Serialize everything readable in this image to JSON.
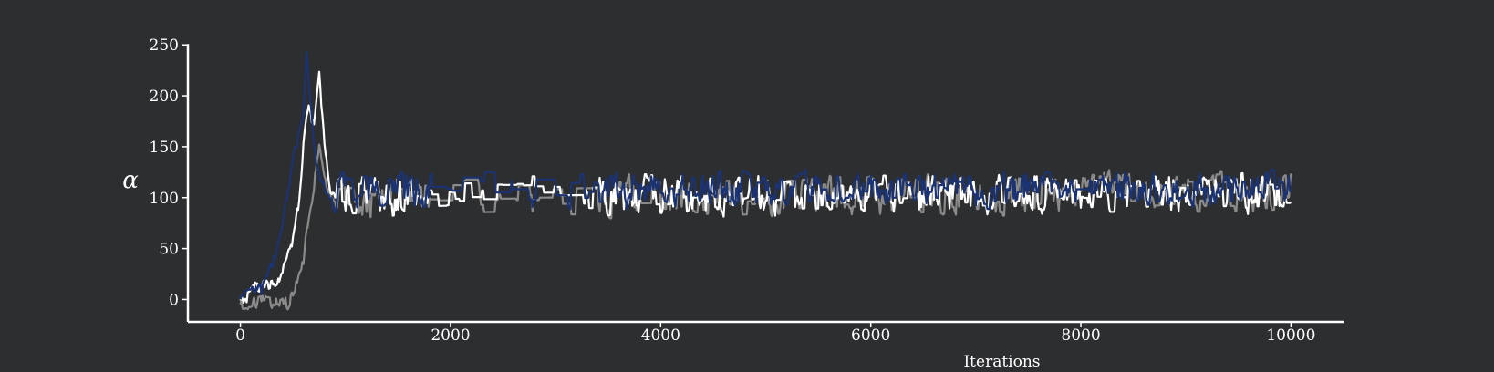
{
  "chart_data": {
    "type": "line",
    "title": "",
    "xlabel": "Iterations",
    "ylabel": "α",
    "xlim": [
      -500,
      10500
    ],
    "ylim": [
      -22,
      252
    ],
    "xticks": [
      0,
      2000,
      4000,
      6000,
      8000,
      10000
    ],
    "yticks": [
      0,
      50,
      100,
      150,
      200,
      250
    ],
    "xtick_labels": [
      "0",
      "2000",
      "4000",
      "6000",
      "8000",
      "10000"
    ],
    "ytick_labels": [
      "0",
      "50",
      "100",
      "150",
      "200",
      "250"
    ],
    "grid": false,
    "legend": "none",
    "series": [
      {
        "color": "#8a8a8a",
        "anchors": [
          [
            0,
            -5
          ],
          [
            100,
            -7
          ],
          [
            200,
            -2
          ],
          [
            300,
            -3
          ],
          [
            400,
            0
          ],
          [
            450,
            -5
          ],
          [
            500,
            5
          ],
          [
            550,
            18
          ],
          [
            600,
            40
          ],
          [
            650,
            80
          ],
          [
            700,
            110
          ],
          [
            750,
            155
          ],
          [
            800,
            120
          ],
          [
            850,
            105
          ],
          [
            900,
            100
          ],
          [
            1000,
            100
          ],
          [
            10000,
            105
          ]
        ],
        "mean": 105,
        "noise": 13
      },
      {
        "color": "#ffffff",
        "anchors": [
          [
            0,
            0
          ],
          [
            100,
            5
          ],
          [
            150,
            12
          ],
          [
            200,
            10
          ],
          [
            300,
            15
          ],
          [
            400,
            25
          ],
          [
            500,
            60
          ],
          [
            550,
            90
          ],
          [
            600,
            150
          ],
          [
            650,
            190
          ],
          [
            700,
            170
          ],
          [
            750,
            220
          ],
          [
            800,
            150
          ],
          [
            850,
            105
          ],
          [
            900,
            100
          ],
          [
            1000,
            100
          ],
          [
            10000,
            105
          ]
        ],
        "mean": 105,
        "noise": 13
      },
      {
        "color": "#1b3372",
        "anchors": [
          [
            0,
            0
          ],
          [
            100,
            5
          ],
          [
            200,
            8
          ],
          [
            300,
            30
          ],
          [
            400,
            70
          ],
          [
            500,
            140
          ],
          [
            550,
            160
          ],
          [
            600,
            185
          ],
          [
            630,
            240
          ],
          [
            680,
            180
          ],
          [
            720,
            130
          ],
          [
            780,
            110
          ],
          [
            850,
            105
          ],
          [
            1000,
            108
          ],
          [
            10000,
            108
          ]
        ],
        "mean": 108,
        "noise": 12
      }
    ]
  }
}
